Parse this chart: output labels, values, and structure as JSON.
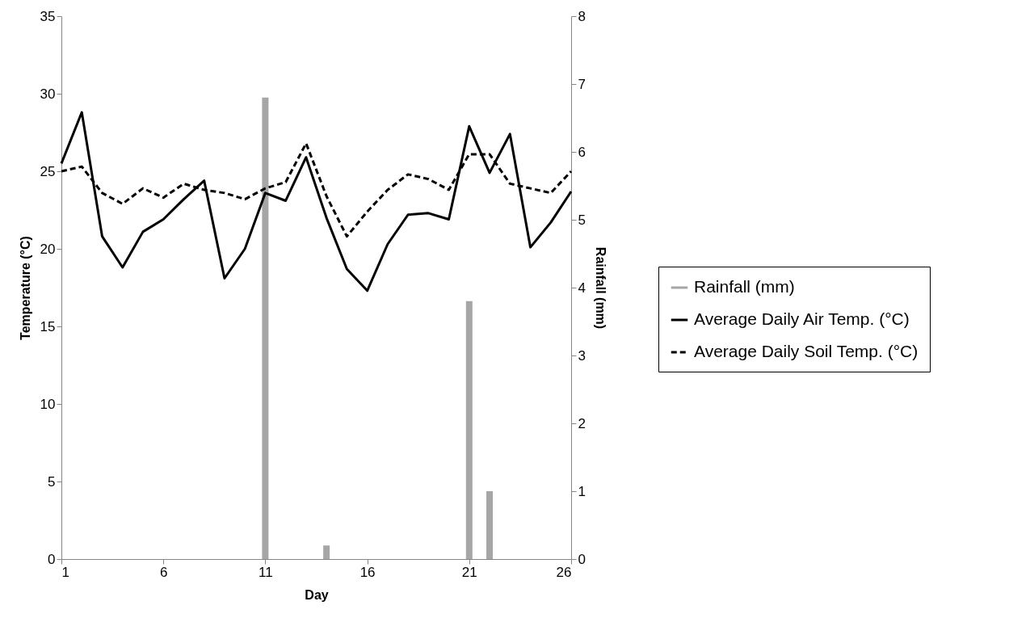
{
  "chart_data": {
    "type": "line",
    "xlabel": "Day",
    "ylabel": "Temperature (°C)",
    "y2label": "Rainfall (mm)",
    "x": [
      1,
      2,
      3,
      4,
      5,
      6,
      7,
      8,
      9,
      10,
      11,
      12,
      13,
      14,
      15,
      16,
      17,
      18,
      19,
      20,
      21,
      22,
      23,
      24,
      25,
      26
    ],
    "series": [
      {
        "name": "Rainfall (mm)",
        "type": "bar",
        "axis": "y2",
        "color": "#a6a6a6",
        "x": [
          11,
          14,
          21,
          22
        ],
        "values": [
          6.8,
          0.2,
          3.8,
          1.0
        ]
      },
      {
        "name": "Average Daily Air Temp. (°C)",
        "color": "#000000",
        "line_style": "solid",
        "values": [
          25.5,
          28.8,
          20.8,
          18.8,
          21.1,
          21.9,
          23.2,
          24.4,
          18.1,
          20.0,
          23.6,
          23.1,
          25.9,
          22.0,
          18.7,
          17.3,
          20.3,
          22.2,
          22.3,
          21.9,
          27.9,
          24.9,
          27.4,
          20.1,
          21.7,
          23.7
        ]
      },
      {
        "name": "Average Daily Soil Temp. (°C)",
        "color": "#000000",
        "line_style": "dashed",
        "values": [
          25.0,
          25.3,
          23.6,
          22.9,
          23.9,
          23.3,
          24.2,
          23.8,
          23.6,
          23.2,
          23.9,
          24.3,
          26.8,
          23.4,
          20.8,
          22.4,
          23.8,
          24.8,
          24.5,
          23.8,
          26.1,
          26.1,
          24.2,
          23.9,
          23.6,
          25.0
        ]
      }
    ],
    "xlim": [
      1,
      26
    ],
    "xticks": [
      1,
      6,
      11,
      16,
      21,
      26
    ],
    "ylim": [
      0,
      35
    ],
    "yticks": [
      0,
      5,
      10,
      15,
      20,
      25,
      30,
      35
    ],
    "y2lim": [
      0,
      8
    ],
    "y2ticks": [
      0,
      1,
      2,
      3,
      4,
      5,
      6,
      7,
      8
    ],
    "grid": false,
    "legend": "right",
    "marker": "none"
  }
}
